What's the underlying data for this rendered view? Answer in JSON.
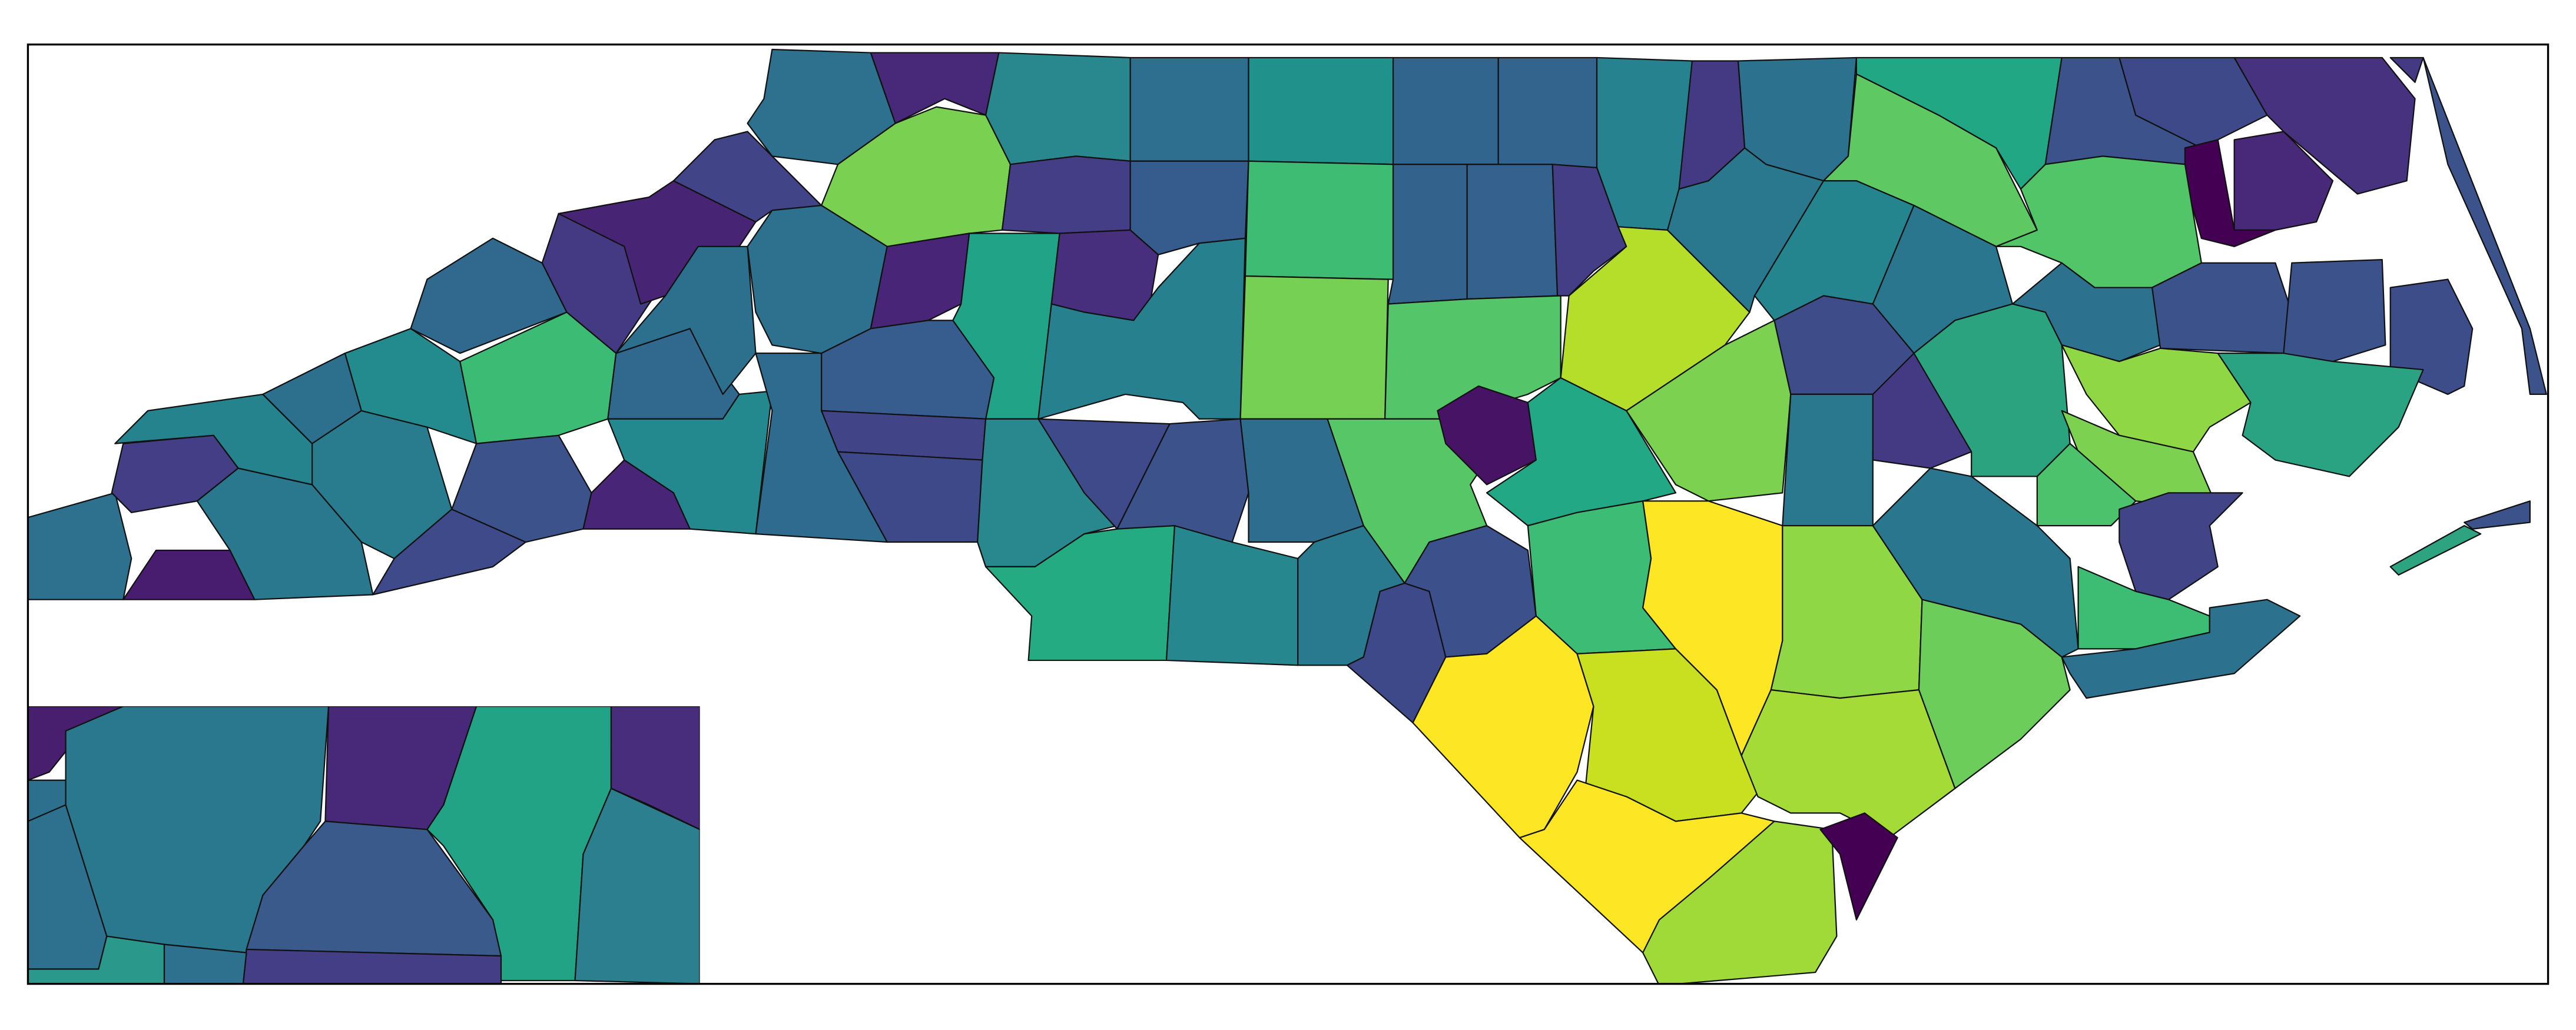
{
  "map": {
    "regions": [
      {
        "color": "#2d718e"
      },
      {
        "color": "#433e85"
      },
      {
        "color": "#481d6f"
      },
      {
        "color": "#2a788e"
      },
      {
        "color": "#25838e"
      },
      {
        "color": "#2d708e"
      },
      {
        "color": "#297b8e"
      },
      {
        "color": "#238a8d"
      },
      {
        "color": "#3e4a89"
      },
      {
        "color": "#3b528b"
      },
      {
        "color": "#31688e"
      },
      {
        "color": "#3cbb75"
      },
      {
        "color": "#482576"
      },
      {
        "color": "#31688e"
      },
      {
        "color": "#23898e"
      },
      {
        "color": "#443983"
      },
      {
        "color": "#482475"
      },
      {
        "color": "#414487"
      },
      {
        "color": "#2d708e"
      },
      {
        "color": "#2d718e"
      },
      {
        "color": "#482878"
      },
      {
        "color": "#29878e"
      },
      {
        "color": "#2e6e8e"
      },
      {
        "color": "#21918c"
      },
      {
        "color": "#32658e"
      },
      {
        "color": "#32648e"
      },
      {
        "color": "#26828e"
      },
      {
        "color": "#443a83"
      },
      {
        "color": "#2c728e"
      },
      {
        "color": "#22a785"
      },
      {
        "color": "#5ec962"
      },
      {
        "color": "#3b528b"
      },
      {
        "color": "#3e4989"
      },
      {
        "color": "#46327e"
      },
      {
        "color": "#440154"
      },
      {
        "color": "#482878"
      },
      {
        "color": "#3b528b"
      },
      {
        "color": "#443983"
      },
      {
        "color": "#7ad151"
      },
      {
        "color": "#433e85"
      },
      {
        "color": "#365c8d"
      },
      {
        "color": "#3fbc73"
      },
      {
        "color": "#33638d"
      },
      {
        "color": "#34618d"
      },
      {
        "color": "#433e85"
      },
      {
        "color": "#2d718e"
      },
      {
        "color": "#482576"
      },
      {
        "color": "#20a386"
      },
      {
        "color": "#472f7d"
      },
      {
        "color": "#27808e"
      },
      {
        "color": "#75d054"
      },
      {
        "color": "#54c568"
      },
      {
        "color": "#b5de2b"
      },
      {
        "color": "#2a788e"
      },
      {
        "color": "#25858e"
      },
      {
        "color": "#2a768e"
      },
      {
        "color": "#52c569"
      },
      {
        "color": "#2c728e"
      },
      {
        "color": "#3b528b"
      },
      {
        "color": "#3b528b"
      },
      {
        "color": "#3d4d8a"
      },
      {
        "color": "#3e4c8a"
      },
      {
        "color": "#365d8d"
      },
      {
        "color": "#414487"
      },
      {
        "color": "#3e4989"
      },
      {
        "color": "#2f6b8e"
      },
      {
        "color": "#29878e"
      },
      {
        "color": "#3e4a89"
      },
      {
        "color": "#3b528b"
      },
      {
        "color": "#2e6d8e"
      },
      {
        "color": "#56c667"
      },
      {
        "color": "#471365"
      },
      {
        "color": "#22a884"
      },
      {
        "color": "#7cd250"
      },
      {
        "color": "#2a788e"
      },
      {
        "color": "#443983"
      },
      {
        "color": "#2ca37f"
      },
      {
        "color": "#8fd744"
      },
      {
        "color": "#2aa383"
      },
      {
        "color": "#7cd250"
      },
      {
        "color": "#4cc26c"
      },
      {
        "color": "#414487"
      },
      {
        "color": "#2ea37f"
      },
      {
        "color": "#3b528b"
      },
      {
        "color": "#25ab82"
      },
      {
        "color": "#26888e"
      },
      {
        "color": "#297a8e"
      },
      {
        "color": "#3e4989"
      },
      {
        "color": "#3c508b"
      },
      {
        "color": "#3cbc75"
      },
      {
        "color": "#fde725"
      },
      {
        "color": "#8fd744"
      },
      {
        "color": "#2a768e"
      },
      {
        "color": "#3dbc74"
      },
      {
        "color": "#2c728e"
      },
      {
        "color": "#6ccd5a"
      },
      {
        "color": "#fde725"
      },
      {
        "color": "#c8e020"
      },
      {
        "color": "#a5db36"
      },
      {
        "color": "#fde725"
      },
      {
        "color": "#a0da39"
      },
      {
        "color": "#440154"
      },
      {
        "color": "#2a768e"
      },
      {
        "color": "#481e6f"
      },
      {
        "color": "#2d708e"
      },
      {
        "color": "#2d718e"
      },
      {
        "color": "#2a788e"
      },
      {
        "color": "#482878"
      },
      {
        "color": "#22a385"
      },
      {
        "color": "#472d7b"
      },
      {
        "color": "#2c7f8e"
      },
      {
        "color": "#3b5a8c"
      },
      {
        "color": "#433e85"
      },
      {
        "color": "#2a988b"
      },
      {
        "color": "#2d718e"
      }
    ]
  }
}
